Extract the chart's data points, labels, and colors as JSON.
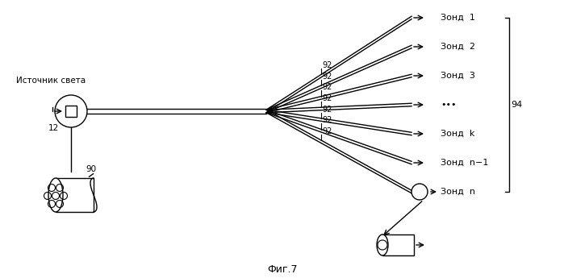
{
  "title": "Фиг.7",
  "background_color": "#ffffff",
  "line_color": "#000000",
  "text_color": "#000000",
  "source_label": "Источник света",
  "label_12": "12",
  "label_90": "90",
  "label_92": "92",
  "label_94": "94",
  "probes": [
    "Зонд  1",
    "Зонд  2",
    "Зонд  3",
    "•••",
    "Зонд  k",
    "Зонд  n−1",
    "Зонд  n"
  ],
  "fig_width": 6.99,
  "fig_height": 3.45,
  "dpi": 100
}
